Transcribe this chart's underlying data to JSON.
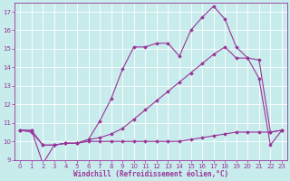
{
  "title": "",
  "xlabel": "Windchill (Refroidissement éolien,°C)",
  "xlim": [
    -0.5,
    23.5
  ],
  "ylim": [
    9,
    17.5
  ],
  "yticks": [
    9,
    10,
    11,
    12,
    13,
    14,
    15,
    16,
    17
  ],
  "xticks": [
    0,
    1,
    2,
    3,
    4,
    5,
    6,
    7,
    8,
    9,
    10,
    11,
    12,
    13,
    14,
    15,
    16,
    17,
    18,
    19,
    20,
    21,
    22,
    23
  ],
  "background_color": "#c8ecec",
  "line_color": "#993399",
  "grid_color": "#ffffff",
  "line1_x": [
    0,
    1,
    2,
    3,
    4,
    5,
    6,
    7,
    8,
    9,
    10,
    11,
    12,
    13,
    14,
    15,
    16,
    17,
    18,
    19,
    20,
    21,
    22,
    23
  ],
  "line1_y": [
    10.6,
    10.6,
    8.8,
    9.8,
    9.9,
    9.9,
    10.1,
    11.1,
    12.3,
    13.9,
    15.1,
    15.1,
    15.3,
    15.3,
    14.6,
    16.0,
    16.7,
    17.3,
    16.6,
    15.1,
    14.5,
    13.4,
    9.8,
    10.6
  ],
  "line2_x": [
    0,
    1,
    2,
    3,
    4,
    5,
    6,
    7,
    8,
    9,
    10,
    11,
    12,
    13,
    14,
    15,
    16,
    17,
    18,
    19,
    20,
    21,
    22,
    23
  ],
  "line2_y": [
    10.6,
    10.6,
    9.8,
    9.8,
    9.9,
    9.9,
    10.1,
    10.2,
    10.4,
    10.7,
    11.2,
    11.7,
    12.2,
    12.7,
    13.2,
    13.7,
    14.2,
    14.7,
    15.1,
    14.5,
    14.5,
    14.4,
    10.5,
    10.6
  ],
  "line3_x": [
    0,
    1,
    2,
    3,
    4,
    5,
    6,
    7,
    8,
    9,
    10,
    11,
    12,
    13,
    14,
    15,
    16,
    17,
    18,
    19,
    20,
    21,
    22,
    23
  ],
  "line3_y": [
    10.6,
    10.5,
    9.8,
    9.8,
    9.9,
    9.9,
    10.0,
    10.0,
    10.0,
    10.0,
    10.0,
    10.0,
    10.0,
    10.0,
    10.0,
    10.1,
    10.2,
    10.3,
    10.4,
    10.5,
    10.5,
    10.5,
    10.5,
    10.6
  ],
  "marker": "D",
  "marker_size": 1.8,
  "line_width": 0.8,
  "tick_fontsize": 5.0,
  "xlabel_fontsize": 5.5
}
